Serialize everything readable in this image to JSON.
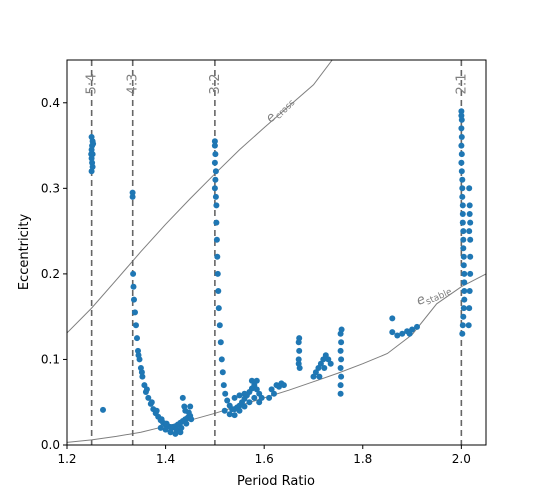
{
  "chart_data": {
    "type": "scatter",
    "xlabel": "Period Ratio",
    "ylabel": "Eccentricity",
    "xlim": [
      1.2,
      2.05
    ],
    "ylim": [
      0.0,
      0.45
    ],
    "grid": false,
    "x_ticks": [
      "1.2",
      "1.4",
      "1.6",
      "1.8",
      "2.0"
    ],
    "y_ticks": [
      "0.0",
      "0.1",
      "0.2",
      "0.3",
      "0.4"
    ],
    "resonances": [
      {
        "label": "5:4",
        "x": 1.25
      },
      {
        "label": "4:3",
        "x": 1.3333
      },
      {
        "label": "3:2",
        "x": 1.5
      },
      {
        "label": "2:1",
        "x": 2.0
      }
    ],
    "curves": [
      {
        "name": "e_cross",
        "label_main": "e",
        "label_sub": "cross",
        "points": [
          [
            1.2,
            0.131
          ],
          [
            1.25,
            0.16
          ],
          [
            1.3,
            0.193
          ],
          [
            1.35,
            0.226
          ],
          [
            1.4,
            0.258
          ],
          [
            1.45,
            0.288
          ],
          [
            1.5,
            0.317
          ],
          [
            1.55,
            0.345
          ],
          [
            1.6,
            0.371
          ],
          [
            1.65,
            0.396
          ],
          [
            1.7,
            0.421
          ],
          [
            1.738,
            0.45
          ]
        ]
      },
      {
        "name": "e_stable",
        "label_main": "e",
        "label_sub": "stable",
        "points": [
          [
            1.2,
            0.003
          ],
          [
            1.25,
            0.006
          ],
          [
            1.3,
            0.01
          ],
          [
            1.35,
            0.015
          ],
          [
            1.4,
            0.022
          ],
          [
            1.45,
            0.029
          ],
          [
            1.5,
            0.037
          ],
          [
            1.55,
            0.046
          ],
          [
            1.6,
            0.055
          ],
          [
            1.65,
            0.064
          ],
          [
            1.7,
            0.074
          ],
          [
            1.75,
            0.084
          ],
          [
            1.8,
            0.095
          ],
          [
            1.85,
            0.107
          ],
          [
            1.9,
            0.129
          ],
          [
            1.95,
            0.165
          ],
          [
            2.0,
            0.185
          ],
          [
            2.05,
            0.2
          ]
        ]
      }
    ],
    "series": [
      {
        "color": "#1f77b4",
        "points": [
          [
            1.25,
            0.36
          ],
          [
            1.252,
            0.355
          ],
          [
            1.251,
            0.35
          ],
          [
            1.25,
            0.345
          ],
          [
            1.252,
            0.34
          ],
          [
            1.25,
            0.335
          ],
          [
            1.251,
            0.33
          ],
          [
            1.252,
            0.325
          ],
          [
            1.25,
            0.32
          ],
          [
            1.253,
            0.352
          ],
          [
            1.249,
            0.34
          ],
          [
            1.273,
            0.041
          ],
          [
            1.333,
            0.295
          ],
          [
            1.333,
            0.29
          ],
          [
            1.334,
            0.2
          ],
          [
            1.335,
            0.185
          ],
          [
            1.336,
            0.17
          ],
          [
            1.338,
            0.155
          ],
          [
            1.34,
            0.14
          ],
          [
            1.342,
            0.125
          ],
          [
            1.344,
            0.11
          ],
          [
            1.347,
            0.1
          ],
          [
            1.35,
            0.09
          ],
          [
            1.353,
            0.08
          ],
          [
            1.357,
            0.07
          ],
          [
            1.36,
            0.062
          ],
          [
            1.365,
            0.055
          ],
          [
            1.37,
            0.048
          ],
          [
            1.375,
            0.042
          ],
          [
            1.38,
            0.037
          ],
          [
            1.385,
            0.033
          ],
          [
            1.39,
            0.029
          ],
          [
            1.395,
            0.026
          ],
          [
            1.4,
            0.024
          ],
          [
            1.405,
            0.022
          ],
          [
            1.41,
            0.021
          ],
          [
            1.415,
            0.021
          ],
          [
            1.42,
            0.022
          ],
          [
            1.425,
            0.024
          ],
          [
            1.43,
            0.026
          ],
          [
            1.435,
            0.028
          ],
          [
            1.44,
            0.03
          ],
          [
            1.445,
            0.032
          ],
          [
            1.45,
            0.034
          ],
          [
            1.345,
            0.105
          ],
          [
            1.352,
            0.085
          ],
          [
            1.362,
            0.065
          ],
          [
            1.372,
            0.05
          ],
          [
            1.382,
            0.04
          ],
          [
            1.392,
            0.03
          ],
          [
            1.402,
            0.025
          ],
          [
            1.412,
            0.02
          ],
          [
            1.422,
            0.018
          ],
          [
            1.432,
            0.02
          ],
          [
            1.442,
            0.025
          ],
          [
            1.452,
            0.03
          ],
          [
            1.438,
            0.045
          ],
          [
            1.435,
            0.055
          ],
          [
            1.44,
            0.04
          ],
          [
            1.45,
            0.045
          ],
          [
            1.447,
            0.038
          ],
          [
            1.41,
            0.015
          ],
          [
            1.42,
            0.013
          ],
          [
            1.43,
            0.015
          ],
          [
            1.4,
            0.018
          ],
          [
            1.39,
            0.02
          ],
          [
            1.5,
            0.355
          ],
          [
            1.5,
            0.35
          ],
          [
            1.501,
            0.34
          ],
          [
            1.5,
            0.33
          ],
          [
            1.502,
            0.32
          ],
          [
            1.501,
            0.31
          ],
          [
            1.5,
            0.3
          ],
          [
            1.502,
            0.29
          ],
          [
            1.503,
            0.28
          ],
          [
            1.503,
            0.26
          ],
          [
            1.504,
            0.24
          ],
          [
            1.505,
            0.22
          ],
          [
            1.506,
            0.2
          ],
          [
            1.507,
            0.18
          ],
          [
            1.508,
            0.16
          ],
          [
            1.51,
            0.14
          ],
          [
            1.512,
            0.12
          ],
          [
            1.514,
            0.1
          ],
          [
            1.516,
            0.085
          ],
          [
            1.518,
            0.07
          ],
          [
            1.521,
            0.06
          ],
          [
            1.525,
            0.052
          ],
          [
            1.53,
            0.046
          ],
          [
            1.535,
            0.042
          ],
          [
            1.54,
            0.042
          ],
          [
            1.545,
            0.044
          ],
          [
            1.55,
            0.046
          ],
          [
            1.555,
            0.05
          ],
          [
            1.56,
            0.054
          ],
          [
            1.565,
            0.058
          ],
          [
            1.57,
            0.062
          ],
          [
            1.575,
            0.066
          ],
          [
            1.58,
            0.07
          ],
          [
            1.585,
            0.065
          ],
          [
            1.59,
            0.06
          ],
          [
            1.595,
            0.055
          ],
          [
            1.52,
            0.04
          ],
          [
            1.53,
            0.036
          ],
          [
            1.54,
            0.035
          ],
          [
            1.55,
            0.04
          ],
          [
            1.56,
            0.045
          ],
          [
            1.57,
            0.05
          ],
          [
            1.58,
            0.055
          ],
          [
            1.59,
            0.05
          ],
          [
            1.54,
            0.055
          ],
          [
            1.55,
            0.058
          ],
          [
            1.56,
            0.06
          ],
          [
            1.575,
            0.075
          ],
          [
            1.585,
            0.075
          ],
          [
            1.61,
            0.055
          ],
          [
            1.615,
            0.065
          ],
          [
            1.62,
            0.06
          ],
          [
            1.625,
            0.07
          ],
          [
            1.63,
            0.068
          ],
          [
            1.635,
            0.072
          ],
          [
            1.64,
            0.07
          ],
          [
            1.67,
            0.095
          ],
          [
            1.67,
            0.1
          ],
          [
            1.671,
            0.11
          ],
          [
            1.67,
            0.12
          ],
          [
            1.671,
            0.125
          ],
          [
            1.672,
            0.09
          ],
          [
            1.7,
            0.08
          ],
          [
            1.705,
            0.085
          ],
          [
            1.71,
            0.09
          ],
          [
            1.715,
            0.095
          ],
          [
            1.72,
            0.1
          ],
          [
            1.725,
            0.105
          ],
          [
            1.73,
            0.1
          ],
          [
            1.735,
            0.095
          ],
          [
            1.712,
            0.08
          ],
          [
            1.722,
            0.09
          ],
          [
            1.755,
            0.06
          ],
          [
            1.755,
            0.07
          ],
          [
            1.756,
            0.08
          ],
          [
            1.755,
            0.09
          ],
          [
            1.756,
            0.1
          ],
          [
            1.755,
            0.11
          ],
          [
            1.756,
            0.12
          ],
          [
            1.755,
            0.13
          ],
          [
            1.757,
            0.135
          ],
          [
            1.86,
            0.148
          ],
          [
            1.86,
            0.132
          ],
          [
            1.88,
            0.13
          ],
          [
            1.89,
            0.133
          ],
          [
            1.9,
            0.135
          ],
          [
            1.91,
            0.138
          ],
          [
            1.87,
            0.128
          ],
          [
            1.895,
            0.13
          ],
          [
            2.0,
            0.39
          ],
          [
            2.0,
            0.385
          ],
          [
            2.001,
            0.38
          ],
          [
            2.0,
            0.37
          ],
          [
            2.001,
            0.36
          ],
          [
            2.0,
            0.35
          ],
          [
            2.001,
            0.34
          ],
          [
            2.0,
            0.33
          ],
          [
            2.001,
            0.32
          ],
          [
            2.002,
            0.31
          ],
          [
            2.002,
            0.3
          ],
          [
            2.002,
            0.29
          ],
          [
            2.003,
            0.28
          ],
          [
            2.003,
            0.27
          ],
          [
            2.003,
            0.26
          ],
          [
            2.004,
            0.25
          ],
          [
            2.004,
            0.24
          ],
          [
            2.004,
            0.23
          ],
          [
            2.005,
            0.22
          ],
          [
            2.005,
            0.21
          ],
          [
            2.006,
            0.2
          ],
          [
            2.006,
            0.19
          ],
          [
            2.006,
            0.18
          ],
          [
            2.006,
            0.17
          ],
          [
            2.005,
            0.16
          ],
          [
            2.004,
            0.15
          ],
          [
            2.003,
            0.14
          ],
          [
            2.002,
            0.13
          ],
          [
            2.016,
            0.3
          ],
          [
            2.017,
            0.28
          ],
          [
            2.018,
            0.26
          ],
          [
            2.018,
            0.24
          ],
          [
            2.018,
            0.22
          ],
          [
            2.018,
            0.2
          ],
          [
            2.017,
            0.18
          ],
          [
            2.016,
            0.16
          ],
          [
            2.015,
            0.14
          ],
          [
            2.017,
            0.27
          ],
          [
            2.016,
            0.25
          ]
        ]
      }
    ]
  }
}
